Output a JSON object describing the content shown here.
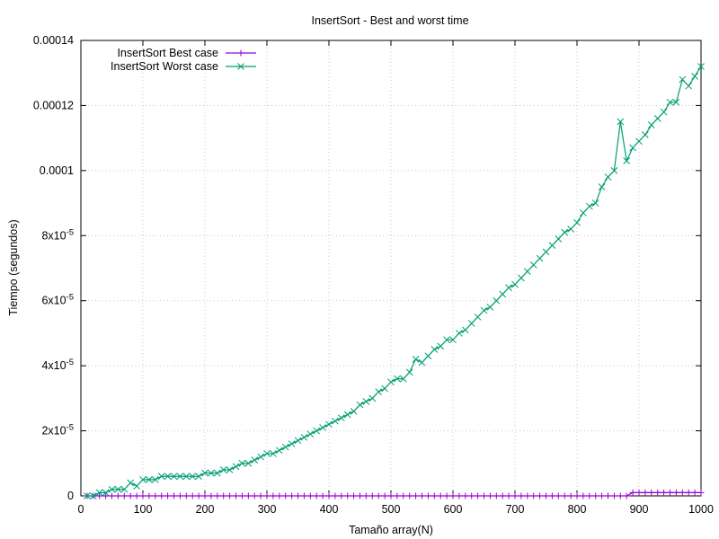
{
  "chart_data": {
    "type": "line",
    "title": "InsertSort - Best and worst time",
    "xlabel": "Tamaño array(N)",
    "ylabel": "Tiempo (segundos)",
    "xlim": [
      0,
      1000
    ],
    "ylim": [
      0,
      0.00014
    ],
    "x_ticks": [
      0,
      100,
      200,
      300,
      400,
      500,
      600,
      700,
      800,
      900,
      1000
    ],
    "x_tick_labels": [
      "0",
      "100",
      "200",
      "300",
      "400",
      "500",
      "600",
      "700",
      "800",
      "900",
      "1000"
    ],
    "y_ticks": [
      0,
      2e-05,
      4e-05,
      6e-05,
      8e-05,
      0.0001,
      0.00012,
      0.00014
    ],
    "y_tick_labels": [
      {
        "mantissa": "0",
        "exponent": ""
      },
      {
        "mantissa": "2x10",
        "exponent": "-5"
      },
      {
        "mantissa": "4x10",
        "exponent": "-5"
      },
      {
        "mantissa": "6x10",
        "exponent": "-5"
      },
      {
        "mantissa": "8x10",
        "exponent": "-5"
      },
      {
        "mantissa": "0.0001",
        "exponent": ""
      },
      {
        "mantissa": "0.00012",
        "exponent": ""
      },
      {
        "mantissa": "0.00014",
        "exponent": ""
      }
    ],
    "grid": true,
    "legend_position": "top-left",
    "x": [
      10,
      20,
      30,
      40,
      50,
      60,
      70,
      80,
      90,
      100,
      110,
      120,
      130,
      140,
      150,
      160,
      170,
      180,
      190,
      200,
      210,
      220,
      230,
      240,
      250,
      260,
      270,
      280,
      290,
      300,
      310,
      320,
      330,
      340,
      350,
      360,
      370,
      380,
      390,
      400,
      410,
      420,
      430,
      440,
      450,
      460,
      470,
      480,
      490,
      500,
      510,
      520,
      530,
      540,
      550,
      560,
      570,
      580,
      590,
      600,
      610,
      620,
      630,
      640,
      650,
      660,
      670,
      680,
      690,
      700,
      710,
      720,
      730,
      740,
      750,
      760,
      770,
      780,
      790,
      800,
      810,
      820,
      830,
      840,
      850,
      860,
      870,
      880,
      890,
      900,
      910,
      920,
      930,
      940,
      950,
      960,
      970,
      980,
      990,
      1000
    ],
    "series": [
      {
        "name": "InsertSort Best case",
        "color": "#9400d3",
        "marker": "plus",
        "values": [
          0,
          0,
          0,
          0,
          0,
          0,
          0,
          0,
          0,
          0,
          0,
          0,
          0,
          0,
          0,
          0,
          0,
          0,
          0,
          0,
          0,
          0,
          0,
          0,
          0,
          0,
          0,
          0,
          0,
          0,
          0,
          0,
          0,
          0,
          0,
          0,
          0,
          0,
          0,
          0,
          0,
          0,
          0,
          0,
          0,
          0,
          0,
          0,
          0,
          0,
          0,
          0,
          0,
          0,
          0,
          0,
          0,
          0,
          0,
          0,
          0,
          0,
          0,
          0,
          0,
          0,
          0,
          0,
          0,
          0,
          0,
          0,
          0,
          0,
          0,
          0,
          0,
          0,
          0,
          0,
          0,
          0,
          0,
          0,
          0,
          0,
          0,
          0,
          1e-06,
          1e-06,
          1e-06,
          1e-06,
          1e-06,
          1e-06,
          1e-06,
          1e-06,
          1e-06,
          1e-06,
          1e-06,
          1e-06
        ]
      },
      {
        "name": "InsertSort Worst case",
        "color": "#009e73",
        "marker": "cross",
        "values": [
          0,
          0,
          1e-06,
          1e-06,
          2e-06,
          2e-06,
          2e-06,
          4e-06,
          3e-06,
          5e-06,
          5e-06,
          5e-06,
          6e-06,
          6e-06,
          6e-06,
          6e-06,
          6e-06,
          6e-06,
          6e-06,
          7e-06,
          7e-06,
          7e-06,
          8e-06,
          8e-06,
          9e-06,
          1e-05,
          1e-05,
          1.1e-05,
          1.2e-05,
          1.3e-05,
          1.3e-05,
          1.4e-05,
          1.5e-05,
          1.6e-05,
          1.7e-05,
          1.8e-05,
          1.9e-05,
          2e-05,
          2.1e-05,
          2.2e-05,
          2.3e-05,
          2.4e-05,
          2.5e-05,
          2.6e-05,
          2.8e-05,
          2.9e-05,
          3e-05,
          3.2e-05,
          3.3e-05,
          3.5e-05,
          3.6e-05,
          3.6e-05,
          3.8e-05,
          4.2e-05,
          4.1e-05,
          4.3e-05,
          4.5e-05,
          4.6e-05,
          4.8e-05,
          4.8e-05,
          5e-05,
          5.1e-05,
          5.3e-05,
          5.5e-05,
          5.7e-05,
          5.8e-05,
          6e-05,
          6.2e-05,
          6.4e-05,
          6.5e-05,
          6.7e-05,
          6.9e-05,
          7.1e-05,
          7.3e-05,
          7.5e-05,
          7.7e-05,
          7.9e-05,
          8.1e-05,
          8.2e-05,
          8.4e-05,
          8.7e-05,
          8.9e-05,
          9e-05,
          9.5e-05,
          9.8e-05,
          0.0001,
          0.000115,
          0.000103,
          0.000107,
          0.000109,
          0.000111,
          0.000114,
          0.000116,
          0.000118,
          0.000121,
          0.000121,
          0.000128,
          0.000126,
          0.000129,
          0.000132
        ]
      }
    ]
  }
}
